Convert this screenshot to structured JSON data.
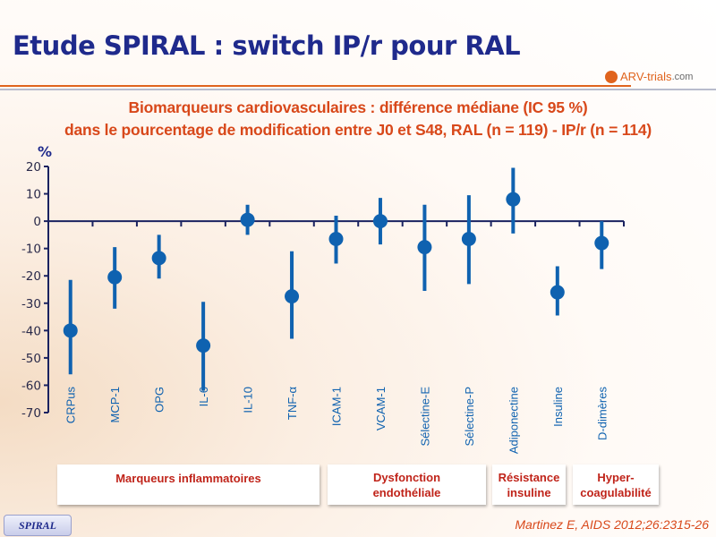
{
  "title": "Etude SPIRAL : switch IP/r pour RAL",
  "logo": {
    "main": "ARV-trials",
    "suffix": ".com"
  },
  "chart_data": {
    "type": "scatter",
    "title": "Biomarqueurs cardiovasculaires : différence médiane (IC 95 %)",
    "subtitle": "dans le pourcentage de modification entre J0 et S48, RAL (n = 119) - IP/r (n = 114)",
    "ylabel": "%",
    "ylim": [
      -70,
      20
    ],
    "yticks": [
      20,
      10,
      0,
      -10,
      -20,
      -30,
      -40,
      -50,
      -60,
      -70
    ],
    "categories": [
      "CRPus",
      "MCP-1",
      "OPG",
      "IL-6",
      "IL-10",
      "TNF-α",
      "ICAM-1",
      "VCAM-1",
      "Sélectine-E",
      "Sélectine-P",
      "Adiponectine",
      "Insuline",
      "D-dimères"
    ],
    "median": [
      -40,
      -20.5,
      -13.5,
      -45.5,
      0.5,
      -27.5,
      -6.5,
      0,
      -9.5,
      -6.5,
      8,
      -26,
      -8
    ],
    "ci_low": [
      -56,
      -32,
      -21,
      -62,
      -5,
      -43,
      -15.5,
      -8.5,
      -25.5,
      -23,
      -4.5,
      -34.5,
      -17.5
    ],
    "ci_high": [
      -21.5,
      -9.5,
      -5,
      -29.5,
      6,
      -11,
      2,
      8.5,
      6,
      9.5,
      19.5,
      -16.5,
      0
    ],
    "color": "#0f62b0"
  },
  "groups": [
    {
      "label": "Marqueurs inflammatoires"
    },
    {
      "label": "Dysfonction endothéliale"
    },
    {
      "label": "Résistance insuline"
    },
    {
      "label": "Hyper-coagulabilité"
    }
  ],
  "footer": {
    "badge": "SPIRAL",
    "reference": "Martinez E, AIDS 2012;26:2315-26"
  }
}
